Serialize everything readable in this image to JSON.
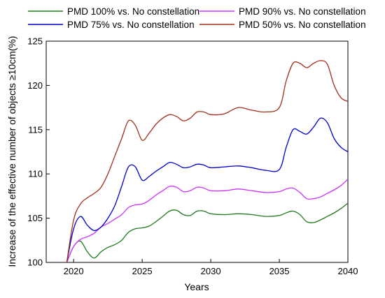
{
  "chart_data": {
    "type": "line",
    "xlabel": "Years",
    "ylabel": "Increase of the effective number of objects ≥10cm(%)",
    "xlim": [
      2018,
      2040
    ],
    "ylim": [
      100,
      125
    ],
    "xticks": [
      2020,
      2025,
      2030,
      2035,
      2040
    ],
    "yticks": [
      100,
      105,
      110,
      115,
      120,
      125
    ],
    "grid": false,
    "legend_position": "top",
    "series": [
      {
        "name": "PMD 100% vs. No constellation",
        "color": "#1f7a1f",
        "x": [
          2019.5,
          2020.0,
          2020.5,
          2021.0,
          2021.5,
          2022.0,
          2022.5,
          2023.0,
          2023.5,
          2024.0,
          2024.5,
          2025.0,
          2025.5,
          2026.0,
          2026.5,
          2027.0,
          2027.5,
          2028.0,
          2028.5,
          2029.0,
          2029.5,
          2030.0,
          2031.0,
          2032.0,
          2033.0,
          2034.0,
          2035.0,
          2035.5,
          2036.0,
          2036.5,
          2037.0,
          2037.5,
          2038.0,
          2038.5,
          2039.0,
          2039.5,
          2040.0
        ],
        "y": [
          100.0,
          101.8,
          102.4,
          101.2,
          100.5,
          101.2,
          101.7,
          102.0,
          102.5,
          103.4,
          103.8,
          103.9,
          104.1,
          104.6,
          105.2,
          105.8,
          105.9,
          105.4,
          105.3,
          105.8,
          105.8,
          105.5,
          105.4,
          105.5,
          105.4,
          105.2,
          105.3,
          105.6,
          105.8,
          105.4,
          104.6,
          104.5,
          104.8,
          105.2,
          105.6,
          106.1,
          106.7
        ]
      },
      {
        "name": "PMD 90% vs. No constellation",
        "color": "#cc33ff",
        "x": [
          2019.5,
          2020.0,
          2020.5,
          2021.0,
          2021.5,
          2022.0,
          2022.5,
          2023.0,
          2023.5,
          2024.0,
          2024.5,
          2025.0,
          2025.5,
          2026.0,
          2026.5,
          2027.0,
          2027.5,
          2028.0,
          2028.5,
          2029.0,
          2029.5,
          2030.0,
          2031.0,
          2032.0,
          2033.0,
          2034.0,
          2035.0,
          2035.5,
          2036.0,
          2036.5,
          2037.0,
          2037.5,
          2038.0,
          2038.5,
          2039.0,
          2039.5,
          2040.0
        ],
        "y": [
          100.0,
          101.8,
          102.6,
          102.9,
          103.3,
          104.0,
          104.4,
          104.9,
          105.4,
          106.2,
          106.5,
          106.6,
          107.0,
          107.6,
          108.1,
          108.6,
          108.5,
          108.0,
          108.1,
          108.5,
          108.4,
          108.1,
          108.1,
          108.3,
          108.1,
          107.9,
          108.0,
          108.3,
          108.4,
          107.9,
          107.2,
          107.2,
          107.4,
          107.8,
          108.2,
          108.7,
          109.4
        ]
      },
      {
        "name": "PMD 75% vs. No constellation",
        "color": "#0000cc",
        "x": [
          2019.5,
          2020.0,
          2020.5,
          2021.0,
          2021.5,
          2022.0,
          2022.5,
          2023.0,
          2023.5,
          2024.0,
          2024.5,
          2025.0,
          2025.5,
          2026.0,
          2026.5,
          2027.0,
          2027.5,
          2028.0,
          2028.5,
          2029.0,
          2029.5,
          2030.0,
          2031.0,
          2032.0,
          2033.0,
          2034.0,
          2035.0,
          2035.5,
          2036.0,
          2036.5,
          2037.0,
          2037.5,
          2038.0,
          2038.5,
          2039.0,
          2039.5,
          2040.0
        ],
        "y": [
          100.0,
          103.8,
          105.2,
          104.2,
          103.6,
          104.0,
          105.0,
          106.4,
          108.6,
          110.8,
          110.8,
          109.3,
          109.7,
          110.3,
          110.8,
          111.3,
          111.1,
          110.7,
          110.8,
          111.1,
          111.0,
          110.7,
          110.8,
          110.9,
          110.7,
          110.4,
          110.5,
          113.0,
          115.0,
          114.8,
          114.5,
          115.3,
          116.3,
          115.8,
          114.0,
          113.0,
          112.5
        ]
      },
      {
        "name": "PMD 50% vs. No constellation",
        "color": "#a0301a",
        "x": [
          2019.5,
          2020.0,
          2020.5,
          2021.0,
          2021.5,
          2022.0,
          2022.5,
          2023.0,
          2023.5,
          2024.0,
          2024.5,
          2025.0,
          2025.5,
          2026.0,
          2026.5,
          2027.0,
          2027.5,
          2028.0,
          2028.5,
          2029.0,
          2029.5,
          2030.0,
          2031.0,
          2032.0,
          2033.0,
          2034.0,
          2035.0,
          2035.5,
          2036.0,
          2036.5,
          2037.0,
          2037.5,
          2038.0,
          2038.5,
          2039.0,
          2039.5,
          2040.0
        ],
        "y": [
          100.0,
          104.8,
          106.6,
          107.3,
          107.8,
          108.5,
          110.0,
          112.0,
          114.0,
          116.0,
          115.5,
          113.8,
          114.6,
          115.6,
          116.3,
          116.7,
          116.5,
          116.0,
          116.3,
          117.0,
          117.0,
          116.7,
          116.8,
          117.5,
          117.2,
          117.0,
          117.5,
          120.5,
          122.5,
          122.5,
          122.0,
          122.5,
          122.8,
          122.4,
          120.0,
          118.6,
          118.2
        ]
      }
    ]
  }
}
